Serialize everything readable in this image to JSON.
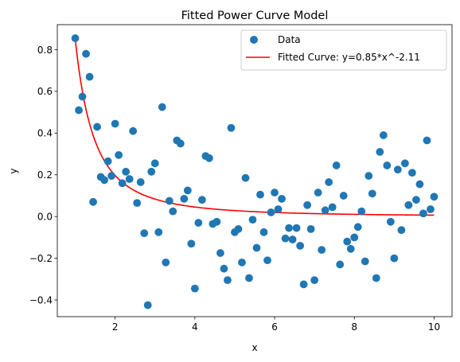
{
  "chart_data": {
    "type": "scatter",
    "title": "Fitted Power Curve Model",
    "xlabel": "x",
    "ylabel": "y",
    "xlim": [
      0.55,
      10.45
    ],
    "ylim": [
      -0.48,
      0.92
    ],
    "x_ticks": [
      2,
      4,
      6,
      8,
      10
    ],
    "y_ticks": [
      -0.4,
      -0.2,
      0.0,
      0.2,
      0.4,
      0.6,
      0.8
    ],
    "x_tick_labels": [
      "2",
      "4",
      "6",
      "8",
      "10"
    ],
    "y_tick_labels": [
      "−0.4",
      "−0.2",
      "0.0",
      "0.2",
      "0.4",
      "0.6",
      "0.8"
    ],
    "grid": false,
    "legend_position": "top-right",
    "series": [
      {
        "name": "Data",
        "kind": "scatter",
        "color": "#1f77b4",
        "points": [
          [
            1.0,
            0.855
          ],
          [
            1.09,
            0.51
          ],
          [
            1.18,
            0.575
          ],
          [
            1.27,
            0.78
          ],
          [
            1.36,
            0.67
          ],
          [
            1.45,
            0.07
          ],
          [
            1.55,
            0.43
          ],
          [
            1.64,
            0.19
          ],
          [
            1.73,
            0.175
          ],
          [
            1.82,
            0.265
          ],
          [
            1.91,
            0.195
          ],
          [
            2.0,
            0.445
          ],
          [
            2.09,
            0.295
          ],
          [
            2.18,
            0.16
          ],
          [
            2.27,
            0.215
          ],
          [
            2.36,
            0.18
          ],
          [
            2.45,
            0.41
          ],
          [
            2.55,
            0.065
          ],
          [
            2.64,
            0.165
          ],
          [
            2.73,
            -0.08
          ],
          [
            2.82,
            -0.425
          ],
          [
            2.91,
            0.215
          ],
          [
            3.0,
            0.255
          ],
          [
            3.09,
            -0.075
          ],
          [
            3.18,
            0.525
          ],
          [
            3.27,
            -0.22
          ],
          [
            3.36,
            0.075
          ],
          [
            3.45,
            0.025
          ],
          [
            3.55,
            0.365
          ],
          [
            3.64,
            0.35
          ],
          [
            3.73,
            0.085
          ],
          [
            3.82,
            0.125
          ],
          [
            3.91,
            -0.13
          ],
          [
            4.0,
            -0.345
          ],
          [
            4.09,
            -0.03
          ],
          [
            4.18,
            0.08
          ],
          [
            4.27,
            0.29
          ],
          [
            4.36,
            0.28
          ],
          [
            4.45,
            -0.035
          ],
          [
            4.55,
            -0.025
          ],
          [
            4.64,
            -0.175
          ],
          [
            4.73,
            -0.25
          ],
          [
            4.82,
            -0.305
          ],
          [
            4.91,
            0.425
          ],
          [
            5.0,
            -0.075
          ],
          [
            5.09,
            -0.06
          ],
          [
            5.18,
            -0.22
          ],
          [
            5.27,
            0.185
          ],
          [
            5.36,
            -0.295
          ],
          [
            5.45,
            -0.015
          ],
          [
            5.55,
            -0.15
          ],
          [
            5.64,
            0.105
          ],
          [
            5.73,
            -0.075
          ],
          [
            5.82,
            -0.21
          ],
          [
            5.91,
            0.02
          ],
          [
            6.0,
            0.115
          ],
          [
            6.09,
            0.035
          ],
          [
            6.18,
            0.085
          ],
          [
            6.27,
            -0.105
          ],
          [
            6.36,
            -0.055
          ],
          [
            6.45,
            -0.11
          ],
          [
            6.55,
            -0.055
          ],
          [
            6.64,
            -0.14
          ],
          [
            6.73,
            -0.325
          ],
          [
            6.82,
            0.055
          ],
          [
            6.91,
            -0.06
          ],
          [
            7.0,
            -0.305
          ],
          [
            7.09,
            0.115
          ],
          [
            7.18,
            -0.16
          ],
          [
            7.27,
            0.03
          ],
          [
            7.36,
            0.165
          ],
          [
            7.45,
            0.045
          ],
          [
            7.55,
            0.245
          ],
          [
            7.64,
            -0.23
          ],
          [
            7.73,
            0.1
          ],
          [
            7.82,
            -0.12
          ],
          [
            7.91,
            -0.155
          ],
          [
            8.0,
            -0.1
          ],
          [
            8.09,
            -0.05
          ],
          [
            8.18,
            0.025
          ],
          [
            8.27,
            -0.215
          ],
          [
            8.36,
            0.195
          ],
          [
            8.45,
            0.11
          ],
          [
            8.55,
            -0.295
          ],
          [
            8.64,
            0.31
          ],
          [
            8.73,
            0.39
          ],
          [
            8.82,
            0.245
          ],
          [
            8.91,
            -0.025
          ],
          [
            9.0,
            -0.2
          ],
          [
            9.09,
            0.225
          ],
          [
            9.18,
            -0.065
          ],
          [
            9.27,
            0.255
          ],
          [
            9.36,
            0.055
          ],
          [
            9.45,
            0.21
          ],
          [
            9.55,
            0.08
          ],
          [
            9.64,
            0.155
          ],
          [
            9.73,
            0.015
          ],
          [
            9.82,
            0.365
          ],
          [
            9.91,
            0.035
          ],
          [
            10.0,
            0.095
          ]
        ]
      },
      {
        "name": "Fitted Curve: y=0.85*x^-2.11",
        "kind": "line",
        "color": "#ff0000",
        "function": "0.85 * x^-2.11",
        "x_range": [
          1,
          10
        ]
      }
    ]
  }
}
